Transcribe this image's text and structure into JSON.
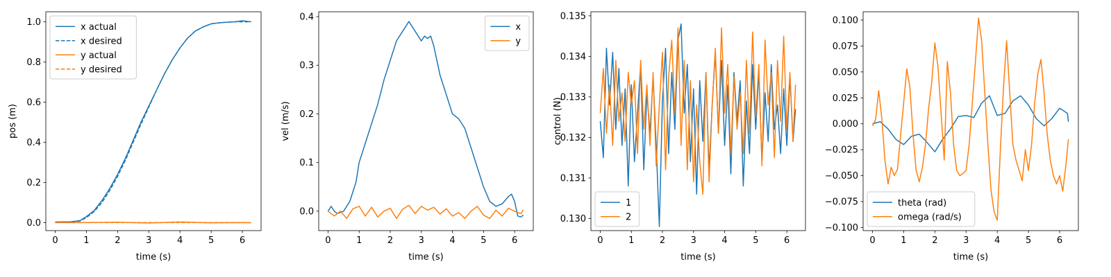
{
  "chart_data": [
    {
      "type": "line",
      "xlabel": "time (s)",
      "ylabel": "pos (m)",
      "xlim": [
        -0.3,
        6.6
      ],
      "ylim": [
        -0.04,
        1.05
      ],
      "xticks": [
        0,
        1,
        2,
        3,
        4,
        5,
        6
      ],
      "yticks": [
        0.0,
        0.2,
        0.4,
        0.6,
        0.8,
        1.0
      ],
      "ytick_decimals": 1,
      "legend": "top-left",
      "series": [
        {
          "name": "x actual",
          "color": "#1f77b4",
          "dash": false,
          "x": [
            0,
            0.5,
            0.8,
            1.0,
            1.25,
            1.5,
            1.75,
            2.0,
            2.25,
            2.5,
            2.75,
            3.0,
            3.25,
            3.5,
            3.75,
            4.0,
            4.25,
            4.5,
            4.75,
            5.0,
            5.25,
            5.5,
            5.75,
            6.0,
            6.28
          ],
          "y": [
            0.003,
            0.004,
            0.01,
            0.03,
            0.06,
            0.11,
            0.17,
            0.24,
            0.32,
            0.41,
            0.5,
            0.58,
            0.66,
            0.74,
            0.81,
            0.87,
            0.92,
            0.955,
            0.975,
            0.99,
            0.995,
            0.998,
            1.0,
            1.005,
            1.0
          ]
        },
        {
          "name": "x desired",
          "color": "#1f77b4",
          "dash": true,
          "x": [
            0,
            0.5,
            0.8,
            1.0,
            1.25,
            1.5,
            1.75,
            2.0,
            2.25,
            2.5,
            2.75,
            3.0,
            3.25,
            3.5,
            3.75,
            4.0,
            4.25,
            4.5,
            4.75,
            5.0,
            5.25,
            5.5,
            5.75,
            6.0,
            6.28
          ],
          "y": [
            0.0,
            0.002,
            0.008,
            0.025,
            0.055,
            0.1,
            0.16,
            0.23,
            0.31,
            0.4,
            0.49,
            0.575,
            0.66,
            0.74,
            0.81,
            0.87,
            0.92,
            0.955,
            0.975,
            0.99,
            0.995,
            0.998,
            1.0,
            1.0,
            1.0
          ]
        },
        {
          "name": "y actual",
          "color": "#ff7f0e",
          "dash": false,
          "x": [
            0,
            1,
            2,
            3,
            4,
            5,
            6,
            6.28
          ],
          "y": [
            0.0,
            0.0,
            0.002,
            -0.002,
            0.003,
            -0.001,
            0.0,
            -0.001
          ]
        },
        {
          "name": "y desired",
          "color": "#ff7f0e",
          "dash": true,
          "x": [
            0,
            6.28
          ],
          "y": [
            0.0,
            0.0
          ]
        }
      ]
    },
    {
      "type": "line",
      "xlabel": "time (s)",
      "ylabel": "vel (m/s)",
      "xlim": [
        -0.3,
        6.6
      ],
      "ylim": [
        -0.04,
        0.41
      ],
      "xticks": [
        0,
        1,
        2,
        3,
        4,
        5,
        6
      ],
      "yticks": [
        0.0,
        0.1,
        0.2,
        0.3,
        0.4
      ],
      "ytick_decimals": 1,
      "legend": "top-right",
      "series": [
        {
          "name": "x",
          "color": "#1f77b4",
          "dash": false,
          "x": [
            0,
            0.1,
            0.2,
            0.3,
            0.5,
            0.7,
            0.9,
            1.0,
            1.2,
            1.4,
            1.6,
            1.8,
            2.0,
            2.2,
            2.4,
            2.5,
            2.6,
            2.7,
            2.8,
            3.0,
            3.1,
            3.2,
            3.3,
            3.4,
            3.6,
            3.8,
            4.0,
            4.2,
            4.4,
            4.6,
            4.8,
            5.0,
            5.2,
            5.4,
            5.6,
            5.8,
            5.9,
            6.0,
            6.1,
            6.2,
            6.28
          ],
          "y": [
            0.0,
            0.01,
            0.0,
            -0.005,
            0.0,
            0.02,
            0.06,
            0.1,
            0.14,
            0.18,
            0.22,
            0.27,
            0.31,
            0.35,
            0.37,
            0.38,
            0.39,
            0.38,
            0.37,
            0.35,
            0.36,
            0.355,
            0.36,
            0.34,
            0.28,
            0.24,
            0.2,
            0.19,
            0.17,
            0.13,
            0.09,
            0.05,
            0.02,
            0.01,
            0.015,
            0.03,
            0.035,
            0.02,
            -0.01,
            -0.012,
            -0.008
          ]
        },
        {
          "name": "y",
          "color": "#ff7f0e",
          "dash": false,
          "x": [
            0,
            0.2,
            0.4,
            0.6,
            0.8,
            1.0,
            1.2,
            1.4,
            1.6,
            1.8,
            2.0,
            2.2,
            2.4,
            2.6,
            2.8,
            3.0,
            3.2,
            3.4,
            3.6,
            3.8,
            4.0,
            4.2,
            4.4,
            4.6,
            4.8,
            5.0,
            5.2,
            5.4,
            5.6,
            5.8,
            6.0,
            6.2,
            6.28
          ],
          "y": [
            0.0,
            -0.01,
            0.0,
            -0.015,
            0.005,
            0.01,
            -0.01,
            0.008,
            -0.012,
            0.0,
            0.006,
            -0.015,
            0.004,
            0.012,
            -0.005,
            0.01,
            0.002,
            0.008,
            -0.006,
            0.005,
            -0.01,
            -0.003,
            -0.015,
            0.0,
            0.01,
            -0.008,
            -0.015,
            0.002,
            -0.01,
            0.006,
            0.0,
            -0.005,
            0.003
          ]
        }
      ]
    },
    {
      "type": "line",
      "xlabel": "time (s)",
      "ylabel": "control (N)",
      "xlim": [
        -0.3,
        6.6
      ],
      "ylim": [
        0.1297,
        0.1351
      ],
      "xticks": [
        0,
        1,
        2,
        3,
        4,
        5,
        6
      ],
      "yticks": [
        0.13,
        0.131,
        0.132,
        0.133,
        0.134,
        0.135
      ],
      "ytick_decimals": 3,
      "legend": "bottom-left",
      "series": [
        {
          "name": "1",
          "color": "#1f77b4",
          "dash": false,
          "x": [
            0,
            0.1,
            0.2,
            0.3,
            0.4,
            0.5,
            0.6,
            0.7,
            0.8,
            0.9,
            1.0,
            1.1,
            1.2,
            1.3,
            1.4,
            1.5,
            1.6,
            1.7,
            1.8,
            1.9,
            2.0,
            2.1,
            2.2,
            2.3,
            2.4,
            2.5,
            2.6,
            2.7,
            2.8,
            2.9,
            3.0,
            3.1,
            3.2,
            3.3,
            3.4,
            3.5,
            3.6,
            3.7,
            3.8,
            3.9,
            4.0,
            4.1,
            4.2,
            4.3,
            4.4,
            4.5,
            4.6,
            4.7,
            4.8,
            4.9,
            5.0,
            5.1,
            5.2,
            5.3,
            5.4,
            5.5,
            5.6,
            5.7,
            5.8,
            5.9,
            6.0,
            6.1,
            6.2,
            6.28
          ],
          "y": [
            0.1324,
            0.1315,
            0.1342,
            0.1328,
            0.1341,
            0.1322,
            0.1337,
            0.1318,
            0.1332,
            0.1308,
            0.1333,
            0.1314,
            0.1326,
            0.1338,
            0.1312,
            0.1331,
            0.1321,
            0.1335,
            0.1318,
            0.1298,
            0.1329,
            0.1342,
            0.1316,
            0.1336,
            0.1322,
            0.1344,
            0.1348,
            0.1326,
            0.1338,
            0.1314,
            0.1332,
            0.1306,
            0.1334,
            0.1319,
            0.1336,
            0.1312,
            0.1328,
            0.1341,
            0.1321,
            0.1339,
            0.1318,
            0.1333,
            0.1311,
            0.1336,
            0.1324,
            0.1334,
            0.1308,
            0.1329,
            0.1316,
            0.1338,
            0.1322,
            0.1336,
            0.1314,
            0.1331,
            0.1319,
            0.1338,
            0.1322,
            0.1328,
            0.1316,
            0.1332,
            0.1318,
            0.1335,
            0.1319,
            0.1327
          ]
        },
        {
          "name": "2",
          "color": "#ff7f0e",
          "dash": false,
          "x": [
            0,
            0.1,
            0.2,
            0.3,
            0.4,
            0.5,
            0.6,
            0.7,
            0.8,
            0.9,
            1.0,
            1.1,
            1.2,
            1.3,
            1.4,
            1.5,
            1.6,
            1.7,
            1.8,
            1.9,
            2.0,
            2.1,
            2.2,
            2.3,
            2.4,
            2.5,
            2.6,
            2.7,
            2.8,
            2.9,
            3.0,
            3.1,
            3.2,
            3.3,
            3.4,
            3.5,
            3.6,
            3.7,
            3.8,
            3.9,
            4.0,
            4.1,
            4.2,
            4.3,
            4.4,
            4.5,
            4.6,
            4.7,
            4.8,
            4.9,
            5.0,
            5.1,
            5.2,
            5.3,
            5.4,
            5.5,
            5.6,
            5.7,
            5.8,
            5.9,
            6.0,
            6.1,
            6.2,
            6.28
          ],
          "y": [
            0.1326,
            0.1337,
            0.1321,
            0.1333,
            0.1318,
            0.1339,
            0.1324,
            0.1331,
            0.1319,
            0.1336,
            0.1328,
            0.1334,
            0.1316,
            0.1339,
            0.1322,
            0.1333,
            0.1318,
            0.1336,
            0.1313,
            0.1328,
            0.1341,
            0.1312,
            0.1335,
            0.1344,
            0.1326,
            0.1347,
            0.1318,
            0.1339,
            0.1312,
            0.1334,
            0.1309,
            0.1328,
            0.1314,
            0.1306,
            0.1336,
            0.1309,
            0.1328,
            0.1342,
            0.1321,
            0.1347,
            0.1326,
            0.1338,
            0.1316,
            0.1335,
            0.1322,
            0.1331,
            0.1316,
            0.1339,
            0.1321,
            0.1346,
            0.1325,
            0.1338,
            0.1313,
            0.1344,
            0.1328,
            0.1336,
            0.1315,
            0.1339,
            0.1324,
            0.1345,
            0.1322,
            0.1336,
            0.1319,
            0.1333
          ]
        }
      ]
    },
    {
      "type": "line",
      "xlabel": "time (s)",
      "ylabel": "",
      "xlim": [
        -0.3,
        6.6
      ],
      "ylim": [
        -0.103,
        0.108
      ],
      "xticks": [
        0,
        1,
        2,
        3,
        4,
        5,
        6
      ],
      "yticks": [
        -0.1,
        -0.075,
        -0.05,
        -0.025,
        0.0,
        0.025,
        0.05,
        0.075,
        0.1
      ],
      "ytick_decimals": 3,
      "legend": "bottom-left",
      "series": [
        {
          "name": "theta (rad)",
          "color": "#1f77b4",
          "dash": false,
          "x": [
            0,
            0.25,
            0.5,
            0.75,
            1.0,
            1.25,
            1.5,
            1.75,
            2.0,
            2.25,
            2.5,
            2.75,
            3.0,
            3.25,
            3.5,
            3.75,
            4.0,
            4.25,
            4.5,
            4.75,
            5.0,
            5.25,
            5.5,
            5.75,
            6.0,
            6.25,
            6.28
          ],
          "y": [
            0.0,
            0.002,
            -0.005,
            -0.015,
            -0.02,
            -0.012,
            -0.01,
            -0.018,
            -0.027,
            -0.015,
            -0.005,
            0.007,
            0.008,
            0.006,
            0.02,
            0.027,
            0.008,
            0.01,
            0.022,
            0.027,
            0.018,
            0.005,
            -0.002,
            0.005,
            0.015,
            0.01,
            0.002
          ]
        },
        {
          "name": "omega (rad/s)",
          "color": "#ff7f0e",
          "dash": false,
          "x": [
            0,
            0.1,
            0.2,
            0.3,
            0.4,
            0.5,
            0.6,
            0.7,
            0.8,
            0.9,
            1.0,
            1.1,
            1.2,
            1.3,
            1.4,
            1.5,
            1.6,
            1.7,
            1.8,
            1.9,
            2.0,
            2.1,
            2.2,
            2.3,
            2.4,
            2.5,
            2.6,
            2.7,
            2.8,
            2.9,
            3.0,
            3.1,
            3.2,
            3.3,
            3.4,
            3.5,
            3.6,
            3.7,
            3.8,
            3.9,
            4.0,
            4.1,
            4.2,
            4.3,
            4.4,
            4.5,
            4.6,
            4.7,
            4.8,
            4.9,
            5.0,
            5.1,
            5.2,
            5.3,
            5.4,
            5.5,
            5.6,
            5.7,
            5.8,
            5.9,
            6.0,
            6.1,
            6.2,
            6.28
          ],
          "y": [
            -0.002,
            0.004,
            0.032,
            0.005,
            -0.035,
            -0.058,
            -0.042,
            -0.05,
            -0.044,
            -0.012,
            0.02,
            0.053,
            0.035,
            -0.01,
            -0.045,
            -0.056,
            -0.042,
            -0.02,
            0.015,
            0.04,
            0.078,
            0.055,
            0.01,
            -0.035,
            0.06,
            0.03,
            -0.02,
            -0.045,
            -0.05,
            -0.048,
            -0.045,
            -0.02,
            0.02,
            0.06,
            0.102,
            0.08,
            0.03,
            -0.02,
            -0.064,
            -0.085,
            -0.093,
            -0.025,
            0.035,
            0.08,
            0.03,
            -0.02,
            -0.035,
            -0.045,
            -0.055,
            -0.025,
            -0.045,
            -0.02,
            0.02,
            0.048,
            0.062,
            0.03,
            -0.01,
            -0.035,
            -0.05,
            -0.058,
            -0.05,
            -0.065,
            -0.04,
            -0.015
          ]
        }
      ]
    }
  ]
}
